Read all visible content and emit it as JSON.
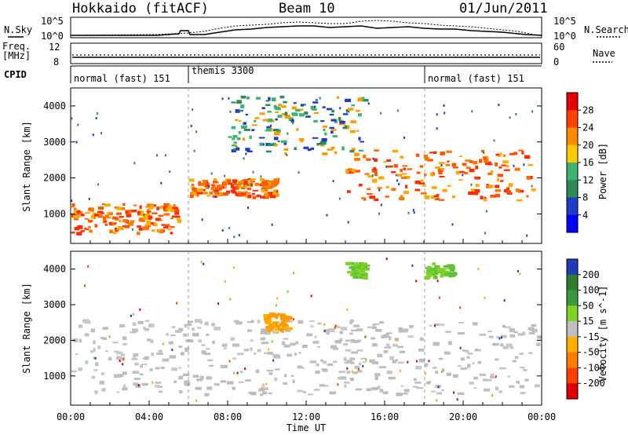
{
  "header": {
    "station": "Hokkaido (fitACF)",
    "beam": "Beam 10",
    "date": "01/Jun/2011"
  },
  "top_panels": {
    "nsky_label": "N.Sky",
    "nsky_ticks": [
      "10^5",
      "10^0"
    ],
    "nsearch_label": "N.Search",
    "nsearch_ticks": [
      "10^5",
      "10^0"
    ],
    "freq_label_line1": "Freq.",
    "freq_label_line2": "[MHz]",
    "freq_ticks": [
      "12",
      "8"
    ],
    "nave_label": "Nave",
    "nave_ticks": [
      "60",
      "0"
    ],
    "cpid_label": "CPID",
    "cpid_segments": [
      {
        "label": "normal (fast) 151",
        "start_hour": 0,
        "end_hour": 6
      },
      {
        "label": "themis 3300",
        "start_hour": 6,
        "end_hour": 18
      },
      {
        "label": "normal (fast) 151",
        "start_hour": 18,
        "end_hour": 24
      }
    ]
  },
  "chart_data": [
    {
      "type": "heatmap",
      "panel": "power",
      "ylabel": "Slant Range [km]",
      "y_ticks": [
        "1000",
        "2000",
        "3000",
        "4000"
      ],
      "ylim": [
        180,
        4500
      ],
      "xlim": [
        0,
        24
      ],
      "colorbar_label": "Power [dB]",
      "colorbar_ticks": [
        "28",
        "24",
        "20",
        "16",
        "12",
        "8",
        "4"
      ],
      "colorbar_colors": [
        "#e60000",
        "#ff4000",
        "#ff8c00",
        "#ffcc00",
        "#3cb371",
        "#2e8b57",
        "#1e3cc8",
        "#0000ff"
      ],
      "features": [
        {
          "t": [
            0.0,
            5.5
          ],
          "range": [
            500,
            1300
          ],
          "level": "high"
        },
        {
          "t": [
            6.0,
            10.5
          ],
          "range": [
            1500,
            2000
          ],
          "level": "high"
        },
        {
          "t": [
            14.0,
            23.5
          ],
          "range": [
            1400,
            2800
          ],
          "level": "high"
        },
        {
          "t": [
            8.0,
            15.0
          ],
          "range": [
            2700,
            4300
          ],
          "level": "medium"
        }
      ]
    },
    {
      "type": "heatmap",
      "panel": "velocity",
      "ylabel": "Slant Range [km]",
      "y_ticks": [
        "1000",
        "2000",
        "3000",
        "4000"
      ],
      "ylim": [
        180,
        4500
      ],
      "xlim": [
        0,
        24
      ],
      "xlabel": "Time UT",
      "x_ticks": [
        "00:00",
        "04:00",
        "08:00",
        "12:00",
        "16:00",
        "20:00",
        "00:00"
      ],
      "colorbar_label": "Velocity [m s^-1]",
      "colorbar_ticks": [
        "200",
        "100",
        "50",
        "15",
        "-15",
        "-50",
        "-100",
        "-200"
      ],
      "colorbar_colors": [
        "#1e3cb4",
        "#2e7d32",
        "#3a9a3a",
        "#7ed321",
        "#c0c0c0",
        "#ffb000",
        "#ff7f00",
        "#ff4000",
        "#e00000"
      ],
      "features": [
        {
          "t": [
            0.0,
            23.8
          ],
          "range": [
            500,
            2600
          ],
          "level": "ground-scatter"
        },
        {
          "t": [
            9.8,
            11.0
          ],
          "range": [
            2300,
            2800
          ],
          "level": "-50"
        },
        {
          "t": [
            14.0,
            15.0
          ],
          "range": [
            3800,
            4200
          ],
          "level": "50"
        },
        {
          "t": [
            18.0,
            19.5
          ],
          "range": [
            3800,
            4200
          ],
          "level": "50"
        }
      ]
    }
  ],
  "colors": {
    "high": "#ff3300",
    "mid": "#ff9900",
    "low": "#3cb371",
    "ground": "#c0c0c0"
  }
}
